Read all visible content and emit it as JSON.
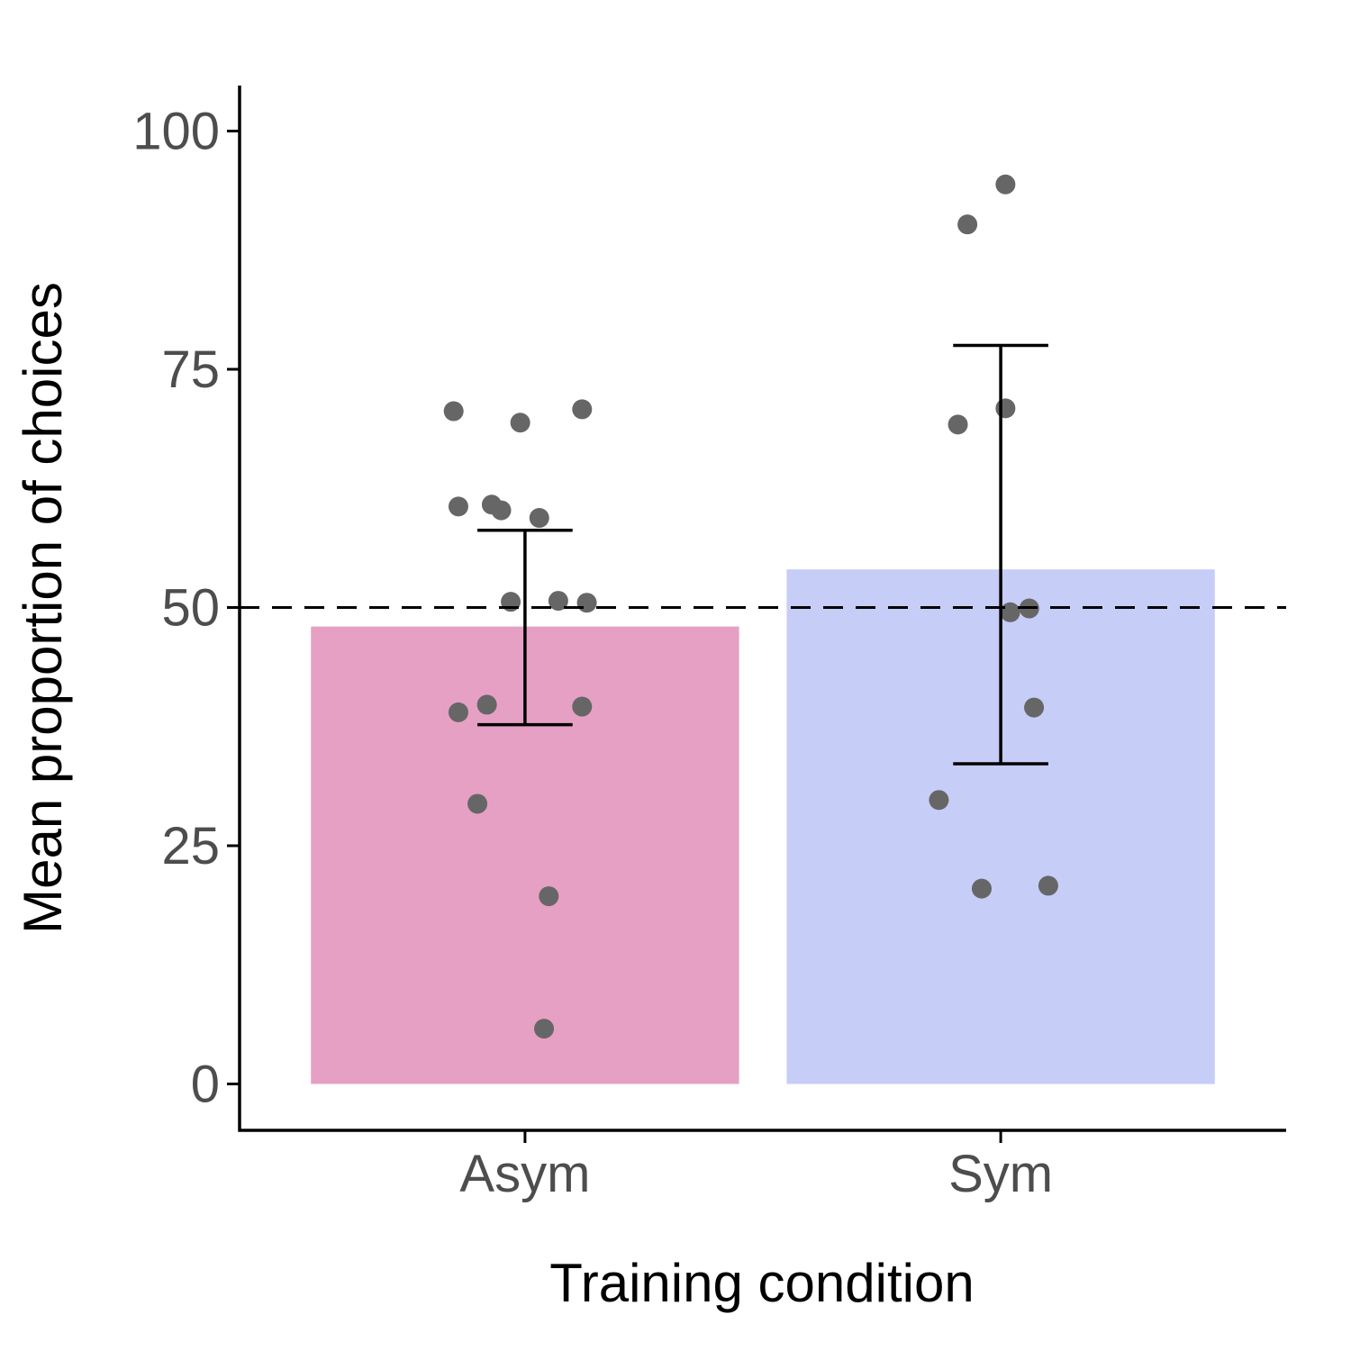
{
  "chart_data": {
    "type": "bar",
    "xlabel": "Training condition",
    "ylabel": "Mean proportion of choices",
    "categories": [
      "Asym",
      "Sym"
    ],
    "values": [
      48,
      54
    ],
    "error_bars": [
      {
        "low": 37.7,
        "high": 58.1
      },
      {
        "low": 33.6,
        "high": 77.5
      }
    ],
    "bar_colors": [
      "#e6a0c4",
      "#c6cdf7"
    ],
    "point_color": "#666666",
    "reference_line": {
      "y": 50,
      "style": "dashed"
    },
    "ylim": [
      -5,
      105
    ],
    "yticks": [
      0,
      25,
      50,
      75,
      100
    ],
    "grid": false,
    "points": [
      [
        {
          "jitter": -0.15,
          "y": 70.6
        },
        {
          "jitter": -0.01,
          "y": 69.4
        },
        {
          "jitter": 0.12,
          "y": 70.8
        },
        {
          "jitter": -0.14,
          "y": 60.6
        },
        {
          "jitter": -0.07,
          "y": 60.8
        },
        {
          "jitter": -0.05,
          "y": 60.2
        },
        {
          "jitter": 0.03,
          "y": 59.4
        },
        {
          "jitter": -0.03,
          "y": 50.6
        },
        {
          "jitter": 0.07,
          "y": 50.7
        },
        {
          "jitter": 0.13,
          "y": 50.5
        },
        {
          "jitter": -0.14,
          "y": 39.0
        },
        {
          "jitter": -0.08,
          "y": 39.8
        },
        {
          "jitter": 0.12,
          "y": 39.6
        },
        {
          "jitter": -0.1,
          "y": 29.4
        },
        {
          "jitter": 0.05,
          "y": 19.7
        },
        {
          "jitter": 0.04,
          "y": 5.8
        }
      ],
      [
        {
          "jitter": 0.01,
          "y": 94.4
        },
        {
          "jitter": -0.07,
          "y": 90.2
        },
        {
          "jitter": -0.09,
          "y": 69.2
        },
        {
          "jitter": 0.01,
          "y": 70.9
        },
        {
          "jitter": 0.02,
          "y": 49.5
        },
        {
          "jitter": 0.06,
          "y": 49.9
        },
        {
          "jitter": 0.07,
          "y": 39.5
        },
        {
          "jitter": -0.13,
          "y": 29.8
        },
        {
          "jitter": -0.04,
          "y": 20.5
        },
        {
          "jitter": 0.1,
          "y": 20.8
        }
      ]
    ]
  }
}
